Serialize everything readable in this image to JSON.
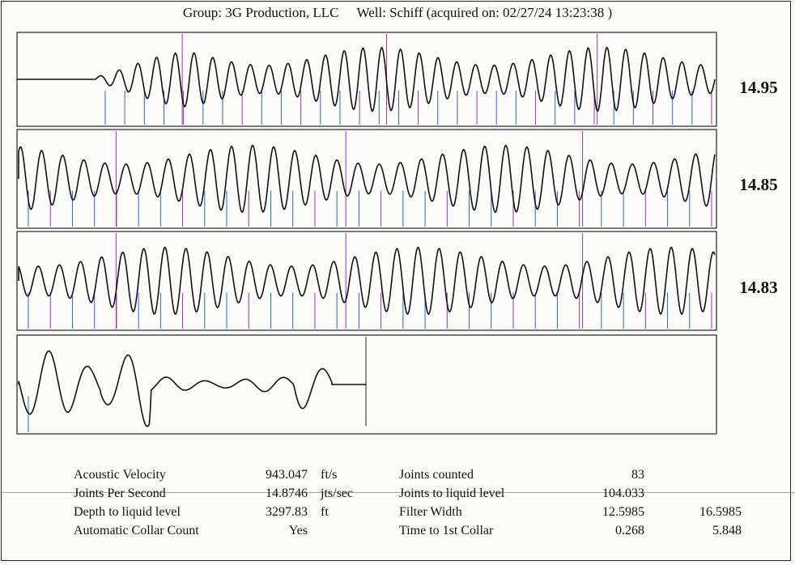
{
  "header": {
    "group": "Group: 3G Production, LLC",
    "well": "Well: Schiff (acquired on: 02/27/24 13:23:38 )"
  },
  "chart_data": {
    "type": "line",
    "description_type": "acoustic fluid-level echometer trace split into 4 stacked panels",
    "series": [
      {
        "name": "",
        "value_label": "14.95",
        "cycles": 33,
        "collar_marks": 32,
        "tall_marks": 3
      },
      {
        "name": "",
        "value_label": "14.85",
        "cycles": 33,
        "collar_marks": 32,
        "tall_marks": 3
      },
      {
        "name": "",
        "value_label": "14.83",
        "cycles": 33,
        "collar_marks": 32,
        "tall_marks": 3
      },
      {
        "name": "",
        "value_label": "",
        "cycles": 8,
        "collar_marks": 1,
        "tall_marks": 1
      }
    ],
    "trace_value_labels": [
      "14.95",
      "14.85",
      "14.83"
    ],
    "colors": {
      "trace": "#111111",
      "marker_blue": "#3a5bc7",
      "marker_purple": "#8a3aa0"
    }
  },
  "stats": {
    "left": [
      {
        "label": "Acoustic Velocity",
        "value": "943.047",
        "unit": "ft/s"
      },
      {
        "label": "Joints Per Second",
        "value": "14.8746",
        "unit": "jts/sec"
      },
      {
        "label": "Depth to liquid level",
        "value": "3297.83",
        "unit": "ft"
      },
      {
        "label": "Automatic Collar Count",
        "value": "Yes",
        "unit": ""
      }
    ],
    "right": [
      {
        "label": "Joints counted",
        "value": "83",
        "extra": ""
      },
      {
        "label": "Joints to liquid level",
        "value": "104.033",
        "extra": ""
      },
      {
        "label": "Filter Width",
        "value": "12.5985",
        "extra": "16.5985"
      },
      {
        "label": "Time to 1st Collar",
        "value": "0.268",
        "extra": "5.848"
      }
    ]
  }
}
